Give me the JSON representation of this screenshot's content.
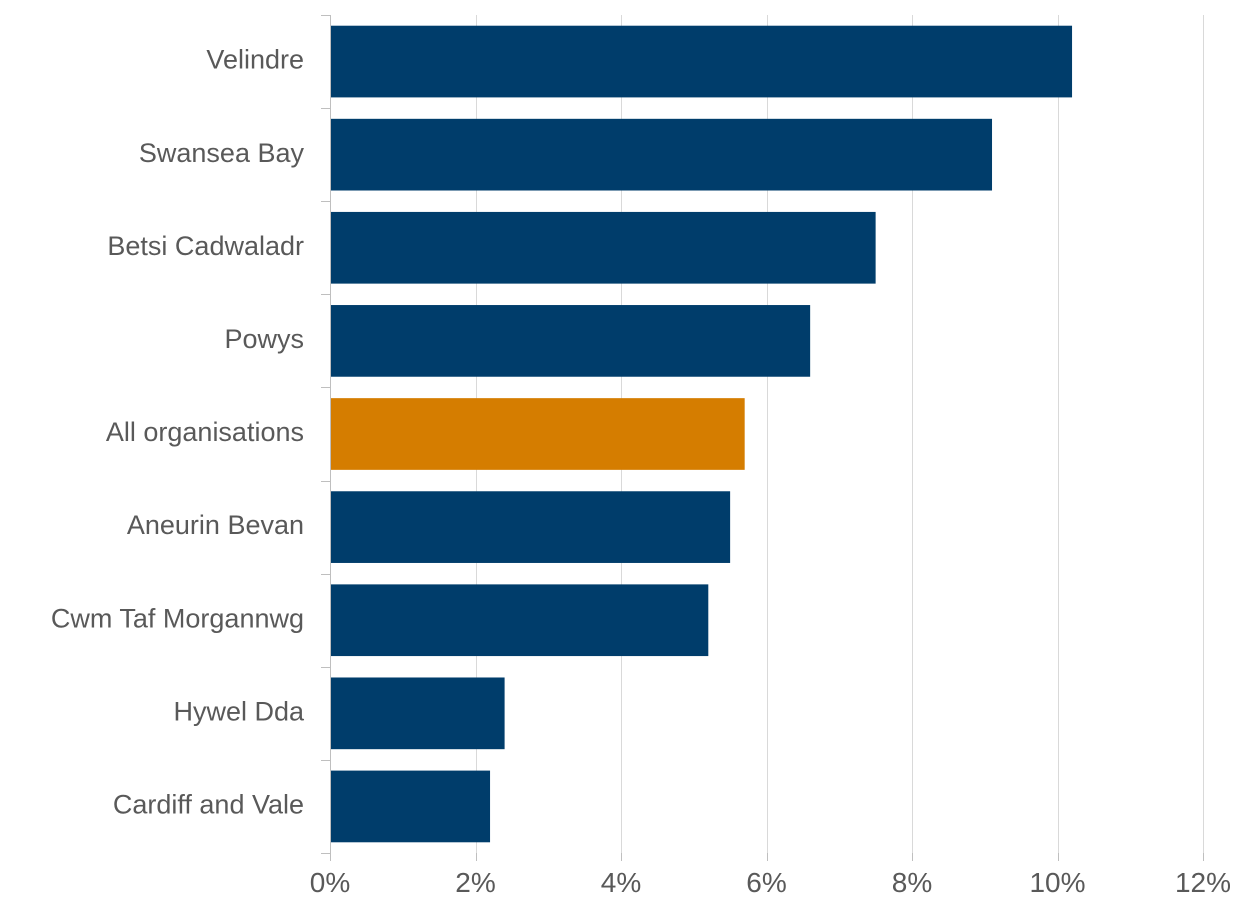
{
  "chart_data": {
    "type": "bar",
    "orientation": "horizontal",
    "title": "",
    "xlabel": "",
    "ylabel": "",
    "categories": [
      "Velindre",
      "Swansea Bay",
      "Betsi Cadwaladr",
      "Powys",
      "All organisations",
      "Aneurin Bevan",
      "Cwm Taf Morgannwg",
      "Hywel Dda",
      "Cardiff and Vale"
    ],
    "values": [
      10.2,
      9.1,
      7.5,
      6.6,
      5.7,
      5.5,
      5.2,
      2.4,
      2.2
    ],
    "highlight_category": "All organisations",
    "colors": {
      "bar": "#003d6b",
      "highlight": "#d57d00",
      "grid": "#d9d9d9",
      "axis": "#bfbfbf",
      "text": "#595959"
    },
    "xlim": [
      0,
      12
    ],
    "x_ticks": [
      0,
      2,
      4,
      6,
      8,
      10,
      12
    ],
    "x_tick_labels": [
      "0%",
      "2%",
      "4%",
      "6%",
      "8%",
      "10%",
      "12%"
    ],
    "grid": "vertical",
    "legend": "none"
  }
}
